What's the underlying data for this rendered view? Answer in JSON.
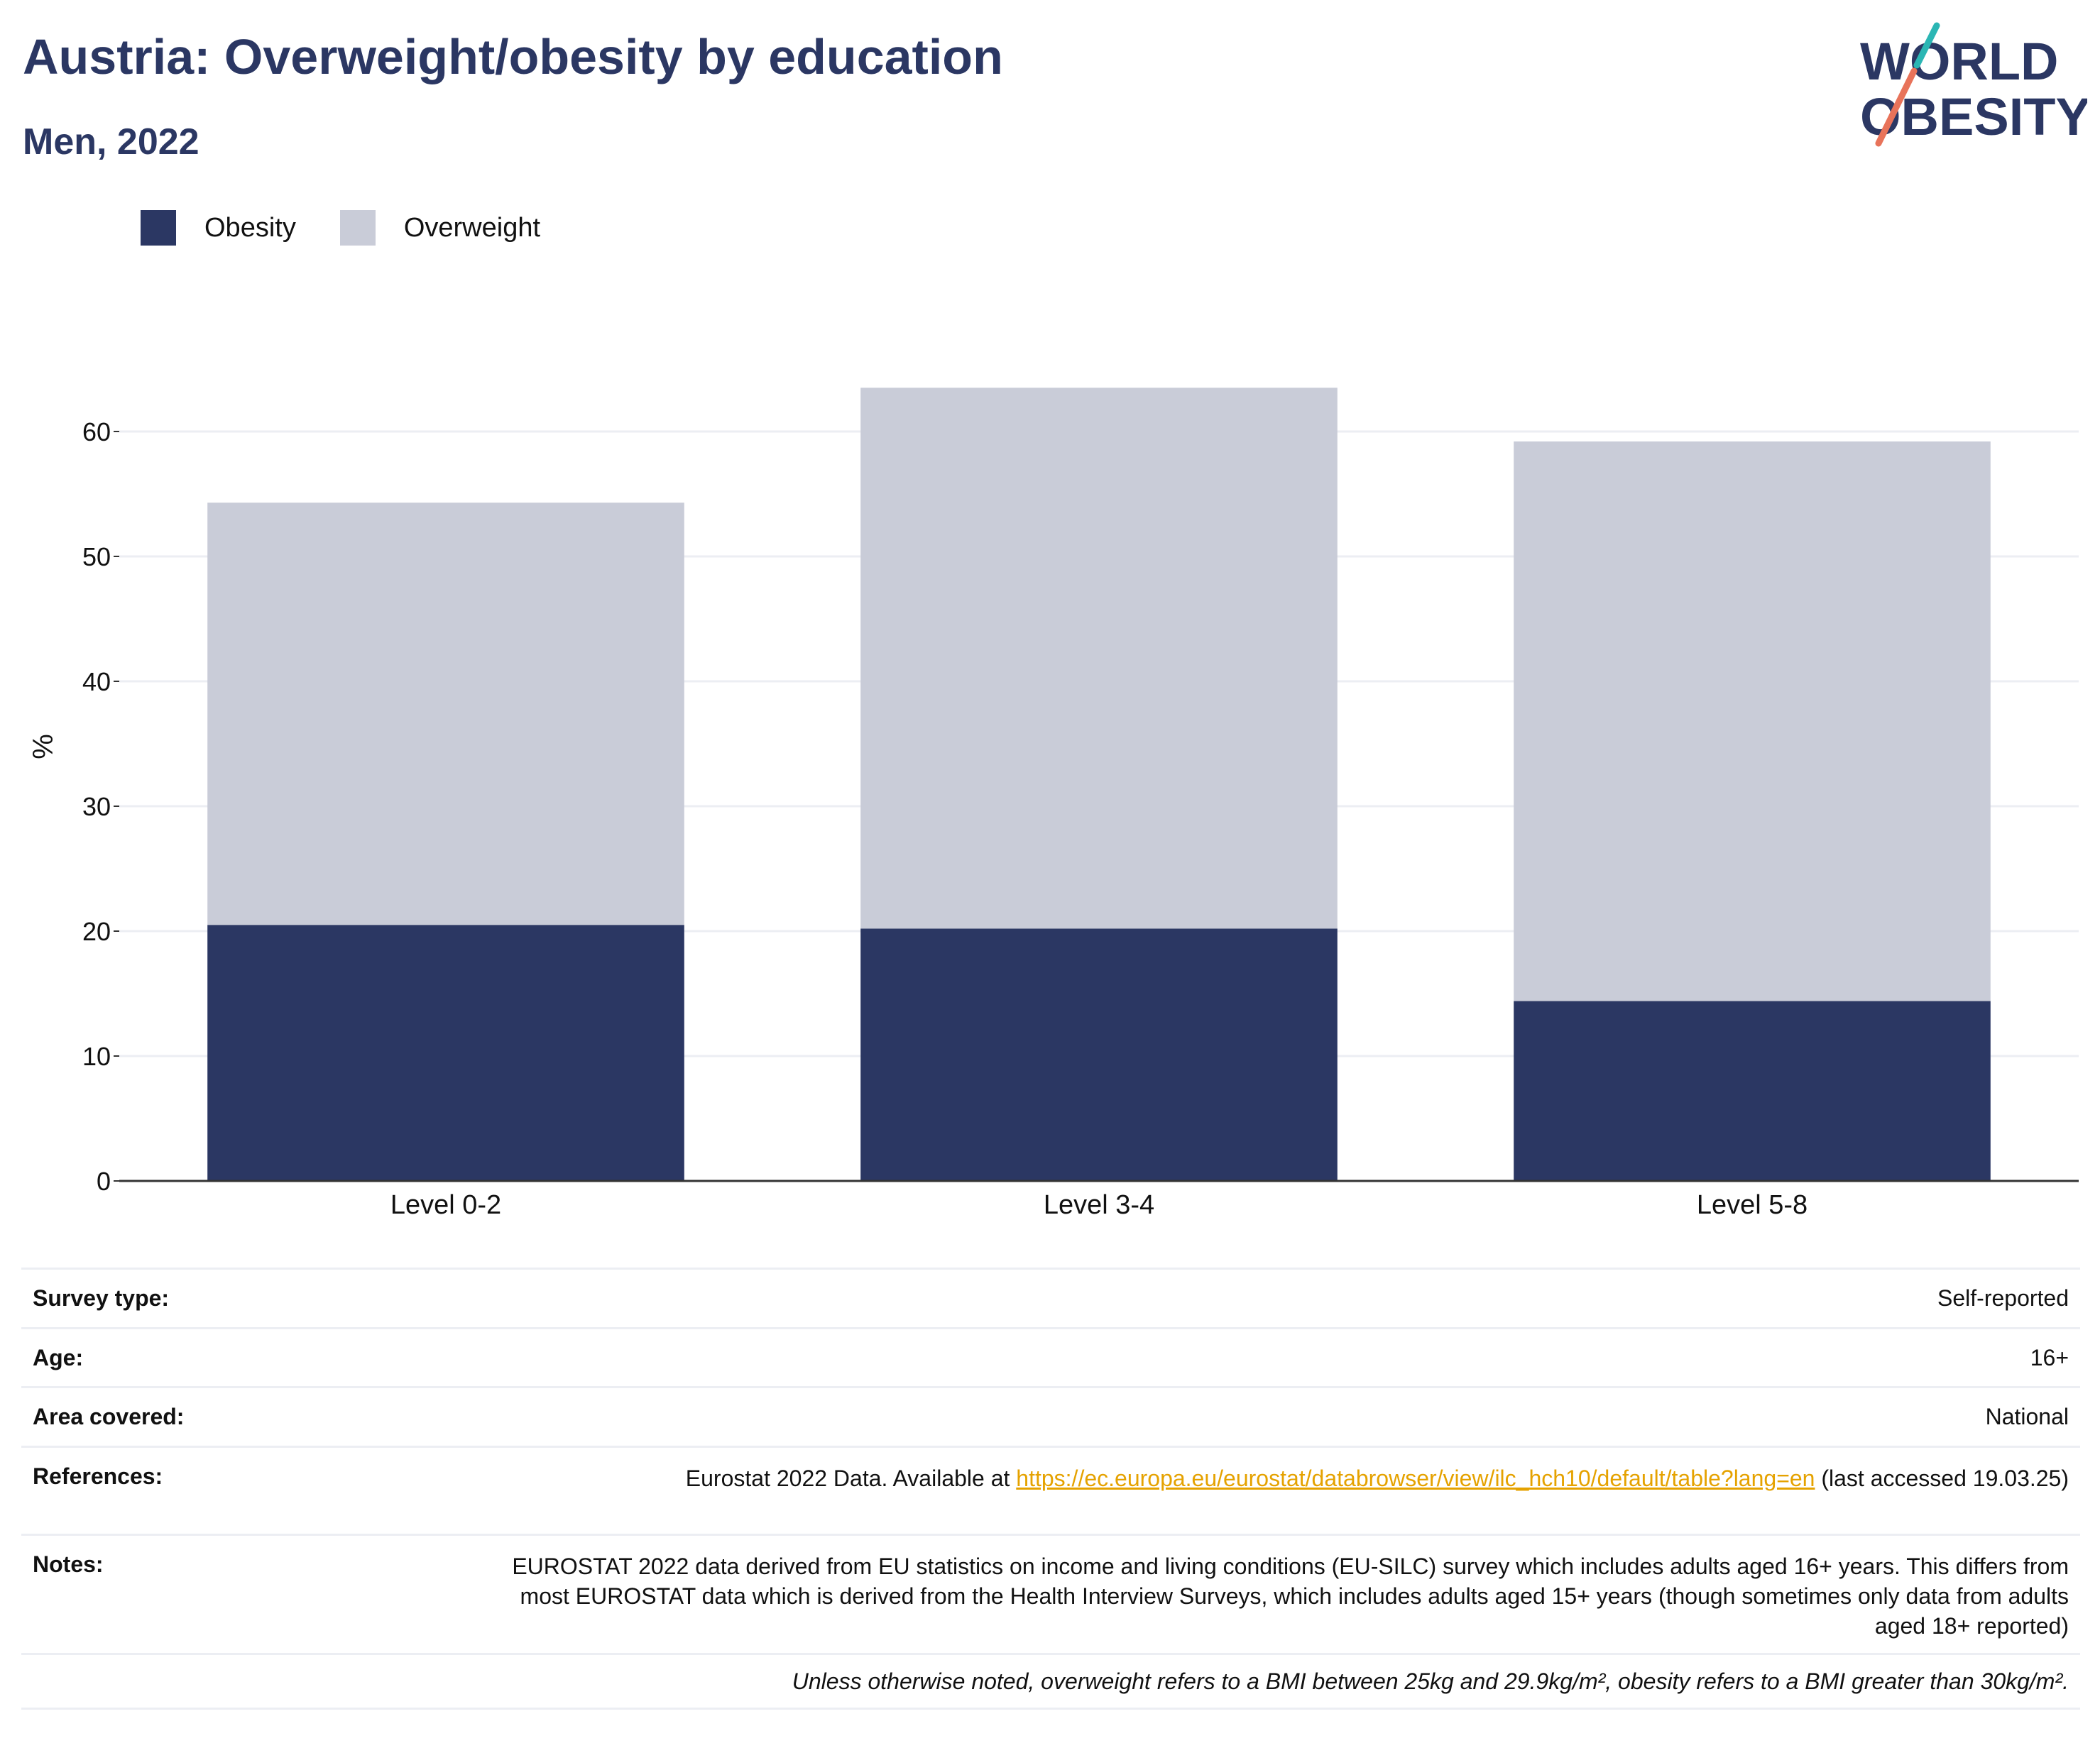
{
  "header": {
    "title": "Austria: Overweight/obesity by education",
    "subtitle": "Men, 2022"
  },
  "logo": {
    "line1": "WORLD",
    "line2": "OBESITY",
    "accent_teal": "#2bb6b4",
    "accent_coral": "#e8735a"
  },
  "colors": {
    "obesity": "#2b3763",
    "overweight": "#c9ccd8",
    "title": "#2b3763",
    "link": "#e5a200"
  },
  "legend": {
    "items": [
      {
        "label": "Obesity",
        "color": "#2b3763"
      },
      {
        "label": "Overweight",
        "color": "#c9ccd8"
      }
    ]
  },
  "chart_data": {
    "type": "bar",
    "stacked": true,
    "categories": [
      "Level 0-2",
      "Level 3-4",
      "Level 5-8"
    ],
    "series": [
      {
        "name": "Obesity",
        "values": [
          20.5,
          20.2,
          14.4
        ]
      },
      {
        "name": "Overweight",
        "values": [
          33.8,
          43.3,
          44.8
        ]
      }
    ],
    "ylabel": "%",
    "ylim": [
      0,
      65
    ],
    "yticks": [
      0,
      10,
      20,
      30,
      40,
      50,
      60
    ],
    "grid": true,
    "legend_position": "top-left"
  },
  "info": {
    "survey_type": {
      "label": "Survey type:",
      "value": "Self-reported"
    },
    "age": {
      "label": "Age:",
      "value": "16+"
    },
    "area": {
      "label": "Area covered:",
      "value": "National"
    },
    "references": {
      "label": "References:",
      "prefix": "Eurostat 2022 Data. Available at ",
      "link": "https://ec.europa.eu/eurostat/databrowser/view/ilc_hch10/default/table?lang=en",
      "suffix": " (last accessed 19.03.25)"
    },
    "notes": {
      "label": "Notes:",
      "value": "EUROSTAT 2022 data derived from EU statistics on income and living conditions (EU-SILC) survey which includes adults aged 16+ years. This differs from most EUROSTAT data which is derived from the Health Interview Surveys, which includes adults aged 15+ years (though sometimes only data from adults aged 18+ reported)"
    },
    "definition": "Unless otherwise noted, overweight refers to a BMI between 25kg and 29.9kg/m², obesity refers to a BMI greater than 30kg/m²."
  }
}
